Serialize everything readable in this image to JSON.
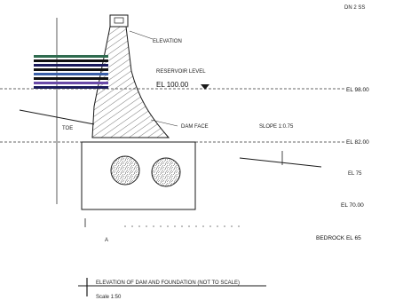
{
  "labels": {
    "top_right": "DN 2 SS",
    "crest_note": "ELEVATION",
    "reservoir_a": "RESERVOIR LEVEL",
    "reservoir_b": "EL 100.00",
    "wl_right": "EL 98.00",
    "dam_face": "DAM FACE",
    "slope_right": "SLOPE 1:0.75",
    "el_right_1": "EL 82.00",
    "el_right_2": "EL 75",
    "el_right_3": "EL 70.00",
    "el_right_4": "BEDROCK EL 65",
    "toe_label": "TOE",
    "base_left": "A",
    "legend_title": "ELEVATION OF DAM AND FOUNDATION (NOT TO SCALE)",
    "legend_sub": "Scale 1:50"
  },
  "colors": {
    "ink": "#1a1a1a",
    "band_green": "#2f6b4f",
    "band_navy": "#1a1a5c",
    "band_blue": "#3a5fa8",
    "band_purple": "#6a4aa8",
    "band_black": "#111111",
    "hatch": "#444444"
  }
}
